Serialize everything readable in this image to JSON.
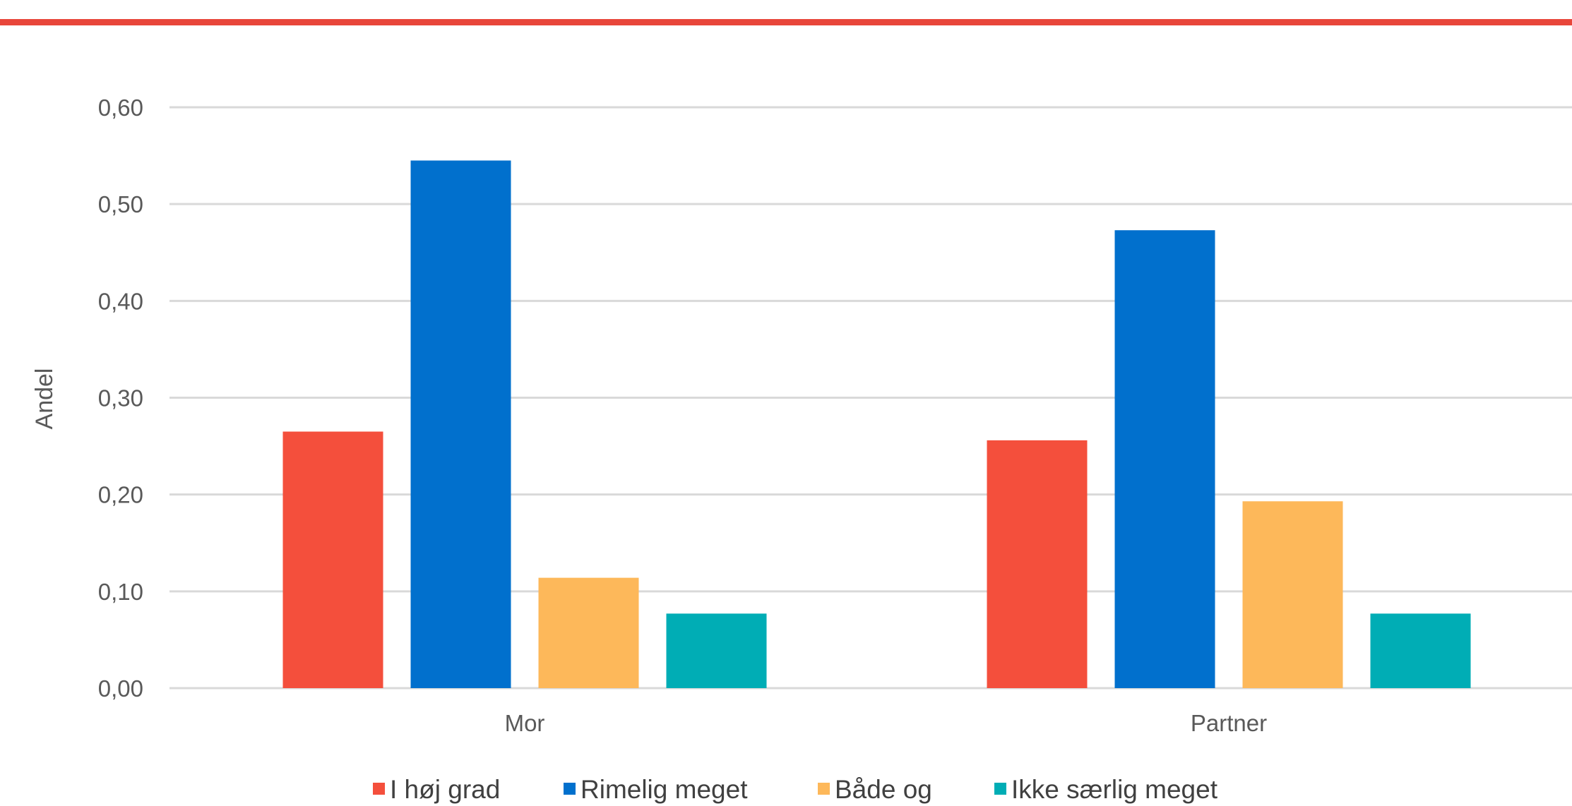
{
  "chart_data": {
    "type": "bar",
    "categories": [
      "Mor",
      "Partner"
    ],
    "series": [
      {
        "name": "I høj grad",
        "values": [
          0.265,
          0.256
        ],
        "color": "#f44f3c"
      },
      {
        "name": "Rimelig meget",
        "values": [
          0.545,
          0.473
        ],
        "color": "#0170cd"
      },
      {
        "name": "Både og",
        "values": [
          0.114,
          0.193
        ],
        "color": "#fdb85a"
      },
      {
        "name": "Ikke særlig meget",
        "values": [
          0.077,
          0.077
        ],
        "color": "#00adb5"
      }
    ],
    "title": "",
    "xlabel": "",
    "ylabel": "Andel",
    "ylim": [
      0,
      0.6
    ],
    "yticks": [
      0,
      0.1,
      0.2,
      0.3,
      0.4,
      0.5,
      0.6
    ],
    "ytick_labels": [
      "0,00",
      "0,10",
      "0,20",
      "0,30",
      "0,40",
      "0,50",
      "0,60"
    ],
    "grid": true,
    "legend_position": "bottom",
    "accent_color": "#e8463a",
    "gridline_color": "#d9d9d9"
  }
}
